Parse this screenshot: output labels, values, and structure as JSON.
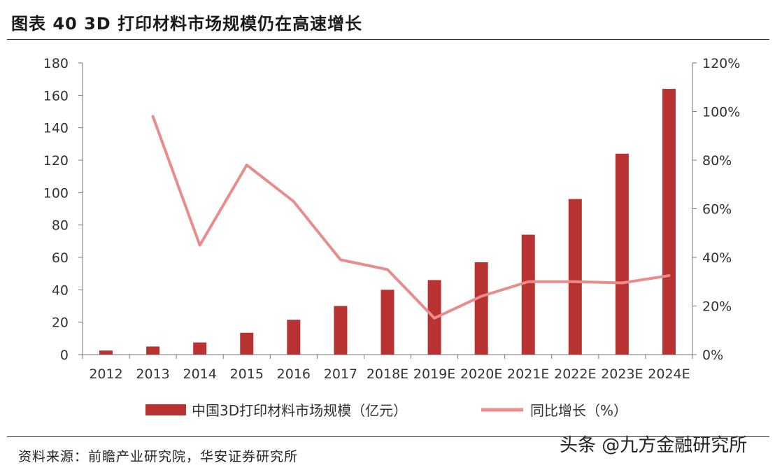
{
  "title": "图表 40 3D 打印材料市场规模仍在高速增长",
  "source": "资料来源：前瞻产业研究院，华安证券研究所",
  "watermark": "头条 @九方金融研究所",
  "colors": {
    "bar": "#b83232",
    "line": "#e88c8c",
    "axis": "#777777",
    "text": "#333333"
  },
  "chart_data": {
    "type": "bar",
    "categories": [
      "2012",
      "2013",
      "2014",
      "2015",
      "2016",
      "2017",
      "2018E",
      "2019E",
      "2020E",
      "2021E",
      "2022E",
      "2023E",
      "2024E"
    ],
    "series": [
      {
        "name": "中国3D打印材料市场规模（亿元）",
        "type": "bar",
        "axis": "left",
        "values": [
          2.5,
          5,
          7.5,
          13.5,
          21.5,
          30,
          40,
          46,
          57,
          74,
          96,
          124,
          164
        ]
      },
      {
        "name": "同比增长（%）",
        "type": "line",
        "axis": "right",
        "values": [
          null,
          98,
          45,
          78,
          63,
          39,
          35,
          15,
          24,
          30,
          30,
          29.5,
          32.5
        ]
      }
    ],
    "left_axis": {
      "ylim": [
        0,
        180
      ],
      "ticks": [
        "0",
        "20",
        "40",
        "60",
        "80",
        "100",
        "120",
        "140",
        "160",
        "180"
      ]
    },
    "right_axis": {
      "ylim": [
        0,
        120
      ],
      "ticks": [
        "0%",
        "20%",
        "40%",
        "60%",
        "80%",
        "100%",
        "120%"
      ]
    },
    "legend_position": "bottom",
    "grid": false
  }
}
